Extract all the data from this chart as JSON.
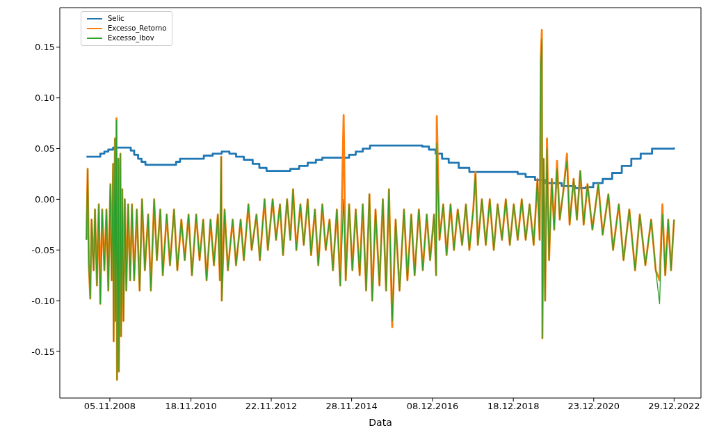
{
  "chart_data": {
    "type": "line",
    "xlabel": "Data",
    "x": [
      "2008-04-05",
      "2008-04-16",
      "2008-04-27",
      "2008-05-10",
      "2008-05-22",
      "2008-06-10",
      "2008-06-22",
      "2008-07-10",
      "2008-07-27",
      "2008-08-10",
      "2008-08-27",
      "2008-09-16",
      "2008-10-05",
      "2008-10-22",
      "2008-11-10",
      "2008-11-22",
      "2008-12-05",
      "2008-12-10",
      "2008-12-22",
      "2008-12-27",
      "2009-01-05",
      "2009-01-10",
      "2009-01-22",
      "2009-01-27",
      "2009-02-10",
      "2009-02-16",
      "2009-02-27",
      "2009-03-10",
      "2009-03-22",
      "2009-04-05",
      "2009-04-22",
      "2009-05-10",
      "2009-05-27",
      "2009-06-16",
      "2009-07-10",
      "2009-08-05",
      "2009-08-27",
      "2009-09-22",
      "2009-10-22",
      "2009-11-16",
      "2009-12-16",
      "2010-01-10",
      "2010-02-10",
      "2010-03-05",
      "2010-04-10",
      "2010-05-10",
      "2010-06-16",
      "2010-07-16",
      "2010-08-22",
      "2010-09-22",
      "2010-10-27",
      "2010-11-27",
      "2011-01-05",
      "2011-02-05",
      "2011-03-10",
      "2011-04-10",
      "2011-05-16",
      "2011-06-16",
      "2011-07-22",
      "2011-08-10",
      "2011-08-22",
      "2011-08-27",
      "2011-09-22",
      "2011-10-22",
      "2011-12-05",
      "2012-01-05",
      "2012-02-16",
      "2012-03-16",
      "2012-04-27",
      "2012-05-27",
      "2012-07-10",
      "2012-08-10",
      "2012-09-22",
      "2012-10-22",
      "2012-12-05",
      "2013-01-05",
      "2013-02-10",
      "2013-03-10",
      "2013-04-16",
      "2013-05-16",
      "2013-06-10",
      "2013-07-10",
      "2013-08-16",
      "2013-09-16",
      "2013-10-22",
      "2013-11-22",
      "2013-12-27",
      "2014-01-27",
      "2014-03-05",
      "2014-04-05",
      "2014-05-10",
      "2014-06-10",
      "2014-07-16",
      "2014-08-16",
      "2014-09-16",
      "2014-10-05",
      "2014-11-05",
      "2014-12-05",
      "2015-01-05",
      "2015-02-10",
      "2015-03-10",
      "2015-04-10",
      "2015-05-10",
      "2015-06-05",
      "2015-07-05",
      "2015-08-10",
      "2015-09-10",
      "2015-10-10",
      "2015-11-05",
      "2015-12-05",
      "2016-01-05",
      "2016-02-10",
      "2016-03-22",
      "2016-04-22",
      "2016-05-27",
      "2016-06-27",
      "2016-08-05",
      "2016-09-10",
      "2016-10-16",
      "2016-11-16",
      "2016-12-22",
      "2017-01-10",
      "2017-01-16",
      "2017-02-10",
      "2017-03-16",
      "2017-04-16",
      "2017-05-22",
      "2017-06-22",
      "2017-07-27",
      "2017-09-05",
      "2017-10-10",
      "2017-11-10",
      "2017-12-16",
      "2018-01-05",
      "2018-01-27",
      "2018-03-05",
      "2018-04-10",
      "2018-05-16",
      "2018-06-22",
      "2018-07-27",
      "2018-09-05",
      "2018-10-10",
      "2018-11-16",
      "2018-12-22",
      "2019-01-27",
      "2019-03-05",
      "2019-04-10",
      "2019-05-16",
      "2019-06-22",
      "2019-07-27",
      "2019-08-16",
      "2019-08-27",
      "2019-09-05",
      "2019-09-10",
      "2019-09-22",
      "2019-10-05",
      "2019-10-22",
      "2019-11-10",
      "2019-12-05",
      "2019-12-27",
      "2020-01-22",
      "2020-02-16",
      "2020-03-22",
      "2020-04-22",
      "2020-05-16",
      "2020-06-22",
      "2020-07-22",
      "2020-08-22",
      "2020-09-22",
      "2020-10-27",
      "2020-12-11",
      "2021-02-03",
      "2021-03-15",
      "2021-05-06",
      "2021-06-18",
      "2021-08-10",
      "2021-09-22",
      "2021-11-14",
      "2022-01-06",
      "2022-02-18",
      "2022-04-10",
      "2022-06-02",
      "2022-07-14",
      "2022-08-18",
      "2022-09-13",
      "2022-10-09",
      "2022-11-05",
      "2022-12-01",
      "2022-12-29"
    ],
    "series": [
      {
        "name": "Selic",
        "type": "step",
        "color": "#1f77b4",
        "x": [
          "2008-04-05",
          "2008-07-10",
          "2008-08-10",
          "2008-09-16",
          "2008-10-22",
          "2008-12-05",
          "2009-04-10",
          "2009-05-16",
          "2009-06-16",
          "2009-07-22",
          "2009-08-22",
          "2009-09-27",
          "2010-06-05",
          "2010-07-05",
          "2010-08-10",
          "2011-02-10",
          "2011-03-16",
          "2011-06-05",
          "2011-08-27",
          "2011-11-05",
          "2012-01-05",
          "2012-03-16",
          "2012-06-05",
          "2012-08-05",
          "2012-10-10",
          "2013-03-10",
          "2013-05-16",
          "2013-08-05",
          "2013-10-22",
          "2014-01-05",
          "2014-03-05",
          "2014-09-10",
          "2014-11-05",
          "2015-01-05",
          "2015-03-10",
          "2015-05-16",
          "2016-06-27",
          "2016-09-05",
          "2016-11-05",
          "2017-01-05",
          "2017-03-05",
          "2017-05-05",
          "2017-08-05",
          "2017-11-10",
          "2019-01-27",
          "2019-04-10",
          "2019-07-05",
          "2019-10-05",
          "2020-03-05",
          "2020-07-05",
          "2020-10-10",
          "2020-12-19",
          "2021-03-15",
          "2021-06-10",
          "2021-09-06",
          "2021-12-02",
          "2022-02-26",
          "2022-06-10",
          "2022-12-29"
        ],
        "values": [
          0.042,
          0.042,
          0.045,
          0.047,
          0.049,
          0.051,
          0.051,
          0.048,
          0.044,
          0.04,
          0.037,
          0.034,
          0.034,
          0.037,
          0.04,
          0.04,
          0.043,
          0.045,
          0.047,
          0.045,
          0.042,
          0.039,
          0.035,
          0.031,
          0.028,
          0.028,
          0.03,
          0.033,
          0.036,
          0.039,
          0.041,
          0.041,
          0.044,
          0.047,
          0.05,
          0.053,
          0.053,
          0.052,
          0.049,
          0.045,
          0.04,
          0.036,
          0.031,
          0.027,
          0.025,
          0.022,
          0.019,
          0.016,
          0.013,
          0.011,
          0.012,
          0.016,
          0.02,
          0.026,
          0.033,
          0.04,
          0.045,
          0.05,
          0.051
        ]
      },
      {
        "name": "Excesso_Retorno",
        "color": "#ff7f0e",
        "values": [
          -0.04,
          0.03,
          -0.065,
          -0.098,
          -0.02,
          -0.07,
          -0.01,
          -0.085,
          -0.005,
          -0.103,
          -0.01,
          -0.07,
          -0.01,
          -0.09,
          0.015,
          -0.08,
          0.035,
          -0.14,
          0.06,
          -0.12,
          0.08,
          -0.178,
          0.04,
          -0.17,
          0.045,
          -0.135,
          0.01,
          -0.12,
          0.0,
          -0.09,
          -0.005,
          -0.08,
          -0.005,
          -0.08,
          -0.01,
          -0.09,
          0.0,
          -0.07,
          -0.015,
          -0.09,
          0.0,
          -0.06,
          -0.01,
          -0.075,
          -0.015,
          -0.065,
          -0.01,
          -0.07,
          -0.02,
          -0.06,
          -0.015,
          -0.075,
          -0.015,
          -0.06,
          -0.02,
          -0.08,
          -0.02,
          -0.065,
          -0.015,
          -0.08,
          0.042,
          -0.1,
          -0.01,
          -0.07,
          -0.02,
          -0.065,
          -0.02,
          -0.06,
          -0.005,
          -0.05,
          -0.015,
          -0.06,
          0.0,
          -0.05,
          0.0,
          -0.04,
          -0.005,
          -0.055,
          0.0,
          -0.04,
          0.01,
          -0.05,
          -0.005,
          -0.045,
          0.0,
          -0.055,
          -0.01,
          -0.065,
          -0.005,
          -0.05,
          -0.02,
          -0.07,
          -0.01,
          -0.085,
          0.083,
          -0.08,
          -0.005,
          -0.07,
          -0.01,
          -0.075,
          -0.005,
          -0.09,
          0.005,
          -0.1,
          -0.01,
          -0.085,
          0.0,
          -0.09,
          0.01,
          -0.126,
          -0.02,
          -0.09,
          -0.01,
          -0.08,
          -0.015,
          -0.075,
          -0.01,
          -0.07,
          -0.015,
          -0.06,
          -0.015,
          -0.075,
          0.082,
          -0.04,
          -0.005,
          -0.055,
          -0.005,
          -0.05,
          -0.01,
          -0.045,
          -0.005,
          -0.05,
          -0.01,
          0.027,
          -0.045,
          0.0,
          -0.045,
          0.0,
          -0.05,
          -0.005,
          -0.04,
          0.0,
          -0.045,
          -0.005,
          -0.04,
          0.0,
          -0.04,
          -0.005,
          -0.045,
          0.02,
          -0.04,
          0.14,
          0.167,
          -0.137,
          0.04,
          -0.1,
          0.06,
          -0.06,
          0.02,
          -0.03,
          0.038,
          -0.02,
          0.01,
          0.045,
          -0.025,
          0.02,
          -0.02,
          0.028,
          -0.025,
          0.015,
          -0.03,
          0.015,
          -0.035,
          0.005,
          -0.05,
          -0.005,
          -0.06,
          -0.01,
          -0.07,
          -0.015,
          -0.065,
          -0.02,
          -0.07,
          -0.08,
          -0.005,
          -0.075,
          -0.02,
          -0.07,
          -0.02
        ]
      },
      {
        "name": "Excesso_Ibov",
        "color": "#2ca02c",
        "values": [
          -0.04,
          0.03,
          -0.065,
          -0.098,
          -0.02,
          -0.07,
          -0.01,
          -0.085,
          -0.005,
          -0.103,
          -0.01,
          -0.07,
          -0.01,
          -0.09,
          0.015,
          -0.08,
          0.035,
          -0.14,
          0.06,
          -0.12,
          0.078,
          -0.178,
          0.04,
          -0.17,
          0.045,
          -0.135,
          0.01,
          -0.12,
          0.0,
          -0.09,
          -0.005,
          -0.08,
          -0.005,
          -0.08,
          -0.01,
          -0.09,
          0.0,
          -0.07,
          -0.015,
          -0.09,
          0.0,
          -0.06,
          -0.01,
          -0.075,
          -0.015,
          -0.065,
          -0.01,
          -0.07,
          -0.02,
          -0.06,
          -0.015,
          -0.075,
          -0.015,
          -0.06,
          -0.02,
          -0.08,
          -0.02,
          -0.065,
          -0.015,
          -0.08,
          0.042,
          -0.1,
          -0.01,
          -0.07,
          -0.02,
          -0.065,
          -0.02,
          -0.06,
          -0.005,
          -0.05,
          -0.015,
          -0.06,
          0.0,
          -0.05,
          0.0,
          -0.04,
          -0.005,
          -0.055,
          0.0,
          -0.04,
          0.01,
          -0.05,
          -0.005,
          -0.045,
          0.0,
          -0.055,
          -0.01,
          -0.065,
          -0.005,
          -0.05,
          -0.02,
          -0.07,
          -0.01,
          -0.085,
          0.0,
          -0.08,
          -0.005,
          -0.07,
          -0.01,
          -0.075,
          -0.005,
          -0.09,
          0.005,
          -0.1,
          -0.01,
          -0.085,
          0.0,
          -0.09,
          0.01,
          -0.12,
          -0.02,
          -0.09,
          -0.01,
          -0.08,
          -0.015,
          -0.075,
          -0.01,
          -0.07,
          -0.015,
          -0.06,
          -0.015,
          -0.075,
          0.055,
          -0.04,
          -0.005,
          -0.055,
          -0.005,
          -0.05,
          -0.01,
          -0.045,
          -0.005,
          -0.05,
          -0.01,
          0.025,
          -0.045,
          0.0,
          -0.045,
          0.0,
          -0.05,
          -0.005,
          -0.04,
          0.0,
          -0.045,
          -0.005,
          -0.04,
          0.0,
          -0.04,
          -0.005,
          -0.045,
          0.02,
          -0.04,
          0.135,
          0.158,
          -0.137,
          0.04,
          -0.1,
          0.05,
          -0.06,
          0.02,
          -0.03,
          0.03,
          -0.02,
          0.01,
          0.038,
          -0.025,
          0.02,
          -0.02,
          0.028,
          -0.025,
          0.015,
          -0.03,
          0.015,
          -0.035,
          0.005,
          -0.05,
          -0.005,
          -0.06,
          -0.01,
          -0.07,
          -0.015,
          -0.065,
          -0.02,
          -0.07,
          -0.103,
          -0.015,
          -0.075,
          -0.02,
          -0.07,
          -0.02
        ]
      }
    ],
    "xlim": [
      "2007-08-05",
      "2023-09-01"
    ],
    "xticks": [
      {
        "value": "2008-11-05",
        "label": "05.11.2008"
      },
      {
        "value": "2010-11-18",
        "label": "18.11.2010"
      },
      {
        "value": "2012-11-22",
        "label": "22.11.2012"
      },
      {
        "value": "2014-11-28",
        "label": "28.11.2014"
      },
      {
        "value": "2016-12-08",
        "label": "08.12.2016"
      },
      {
        "value": "2018-12-18",
        "label": "18.12.2018"
      },
      {
        "value": "2020-12-23",
        "label": "23.12.2020"
      },
      {
        "value": "2022-12-29",
        "label": "29.12.2022"
      }
    ],
    "ylim": [
      -0.196,
      0.189
    ],
    "yticks": [
      -0.15,
      {
        "value": -0.1,
        "label": "-0.10"
      },
      -0.05,
      {
        "value": 0,
        "label": "0.00"
      },
      0.05,
      {
        "value": 0.1,
        "label": "0.10"
      },
      0.15
    ],
    "legend": "top left",
    "line_style": "solid",
    "marker": "none"
  }
}
